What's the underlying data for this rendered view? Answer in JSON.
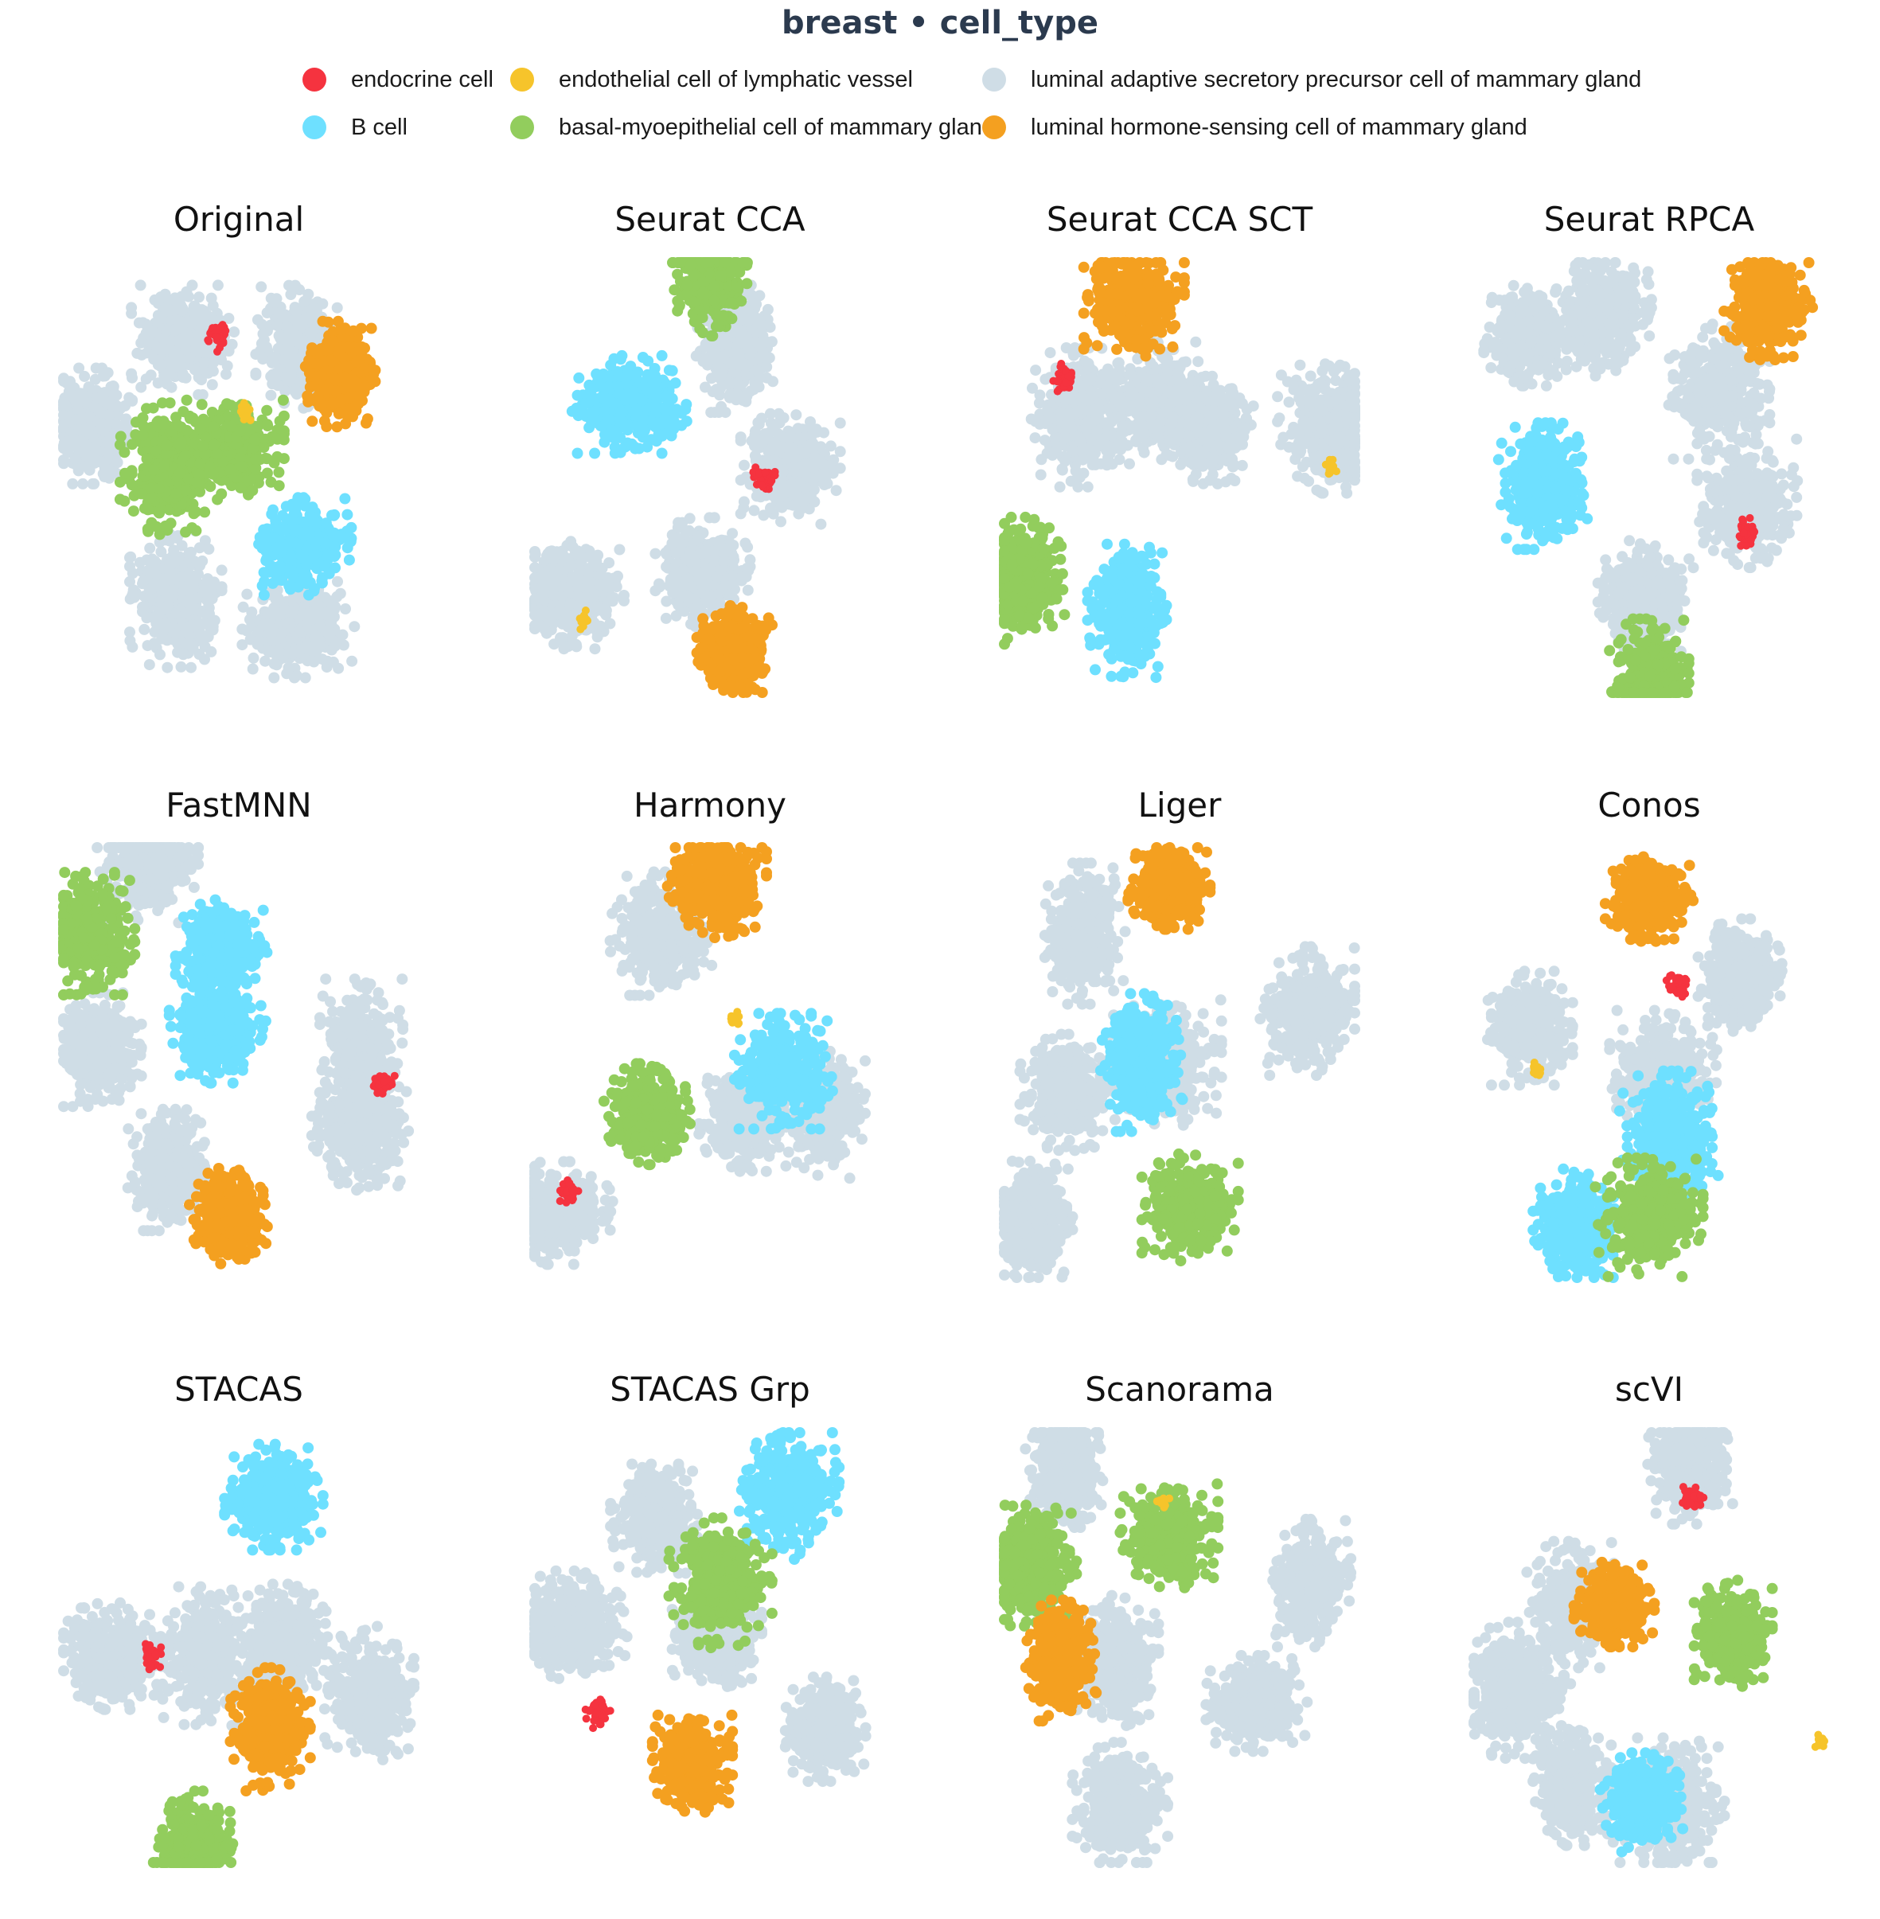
{
  "title": "breast • cell_type",
  "legend": [
    {
      "label": "endocrine cell",
      "color": "#f5333f"
    },
    {
      "label": "endothelial cell of lymphatic vessel",
      "color": "#f6c42b"
    },
    {
      "label": "luminal adaptive secretory precursor cell of mammary gland",
      "color": "#cfdde6"
    },
    {
      "label": "B cell",
      "color": "#6ee0ff"
    },
    {
      "label": "basal-myoepithelial cell of mammary gland",
      "color": "#92cd5d"
    },
    {
      "label": "luminal hormone-sensing cell of mammary gland",
      "color": "#f4a020"
    }
  ],
  "chart_data": {
    "type": "scatter",
    "description_of_marks": "UMAP embeddings; each panel shows clusters of cells coloured by cell type",
    "colors": {
      "endocrine cell": "#f5333f",
      "endothelial cell of lymphatic vessel": "#f6c42b",
      "luminal adaptive secretory precursor cell of mammary gland": "#cfdde6",
      "B cell": "#6ee0ff",
      "basal-myoepithelial cell of mammary gland": "#92cd5d",
      "luminal hormone-sensing cell of mammary gland": "#f4a020"
    },
    "panels": [
      {
        "title": "Original",
        "clusters": [
          {
            "type": "luminal adaptive secretory precursor cell of mammary gland",
            "x": 0.34,
            "y": 0.18
          },
          {
            "type": "luminal adaptive secretory precursor cell of mammary gland",
            "x": 0.67,
            "y": 0.2
          },
          {
            "type": "luminal hormone-sensing cell of mammary gland",
            "x": 0.79,
            "y": 0.26
          },
          {
            "type": "basal-myoepithelial cell of mammary gland",
            "x": 0.3,
            "y": 0.48
          },
          {
            "type": "basal-myoepithelial cell of mammary gland",
            "x": 0.48,
            "y": 0.43
          },
          {
            "type": "luminal adaptive secretory precursor cell of mammary gland",
            "x": 0.08,
            "y": 0.38
          },
          {
            "type": "luminal adaptive secretory precursor cell of mammary gland",
            "x": 0.32,
            "y": 0.78
          },
          {
            "type": "luminal adaptive secretory precursor cell of mammary gland",
            "x": 0.67,
            "y": 0.85
          },
          {
            "type": "B cell",
            "x": 0.68,
            "y": 0.66
          },
          {
            "type": "endocrine cell",
            "x": 0.44,
            "y": 0.17
          },
          {
            "type": "endothelial cell of lymphatic vessel",
            "x": 0.52,
            "y": 0.35
          }
        ]
      },
      {
        "title": "Seurat CCA",
        "clusters": [
          {
            "type": "B cell",
            "x": 0.27,
            "y": 0.33
          },
          {
            "type": "luminal adaptive secretory precursor cell of mammary gland",
            "x": 0.57,
            "y": 0.2
          },
          {
            "type": "luminal adaptive secretory precursor cell of mammary gland",
            "x": 0.73,
            "y": 0.48
          },
          {
            "type": "endocrine cell",
            "x": 0.65,
            "y": 0.5
          },
          {
            "type": "luminal adaptive secretory precursor cell of mammary gland",
            "x": 0.1,
            "y": 0.77
          },
          {
            "type": "luminal adaptive secretory precursor cell of mammary gland",
            "x": 0.48,
            "y": 0.72
          },
          {
            "type": "luminal hormone-sensing cell of mammary gland",
            "x": 0.57,
            "y": 0.9
          },
          {
            "type": "basal-myoepithelial cell of mammary gland",
            "x": 0.5,
            "y": 0.02
          },
          {
            "type": "endothelial cell of lymphatic vessel",
            "x": 0.14,
            "y": 0.83
          }
        ]
      },
      {
        "title": "Seurat CCA SCT",
        "clusters": [
          {
            "type": "luminal hormone-sensing cell of mammary gland",
            "x": 0.37,
            "y": 0.09
          },
          {
            "type": "luminal adaptive secretory precursor cell of mammary gland",
            "x": 0.22,
            "y": 0.36
          },
          {
            "type": "luminal adaptive secretory precursor cell of mammary gland",
            "x": 0.43,
            "y": 0.32
          },
          {
            "type": "endocrine cell",
            "x": 0.17,
            "y": 0.27
          },
          {
            "type": "luminal adaptive secretory precursor cell of mammary gland",
            "x": 0.59,
            "y": 0.39
          },
          {
            "type": "luminal adaptive secretory precursor cell of mammary gland",
            "x": 0.93,
            "y": 0.38
          },
          {
            "type": "B cell",
            "x": 0.35,
            "y": 0.81
          },
          {
            "type": "basal-myoepithelial cell of mammary gland",
            "x": 0.05,
            "y": 0.74
          },
          {
            "type": "endothelial cell of lymphatic vessel",
            "x": 0.93,
            "y": 0.47
          }
        ]
      },
      {
        "title": "Seurat RPCA",
        "clusters": [
          {
            "type": "luminal adaptive secretory precursor cell of mammary gland",
            "x": 0.15,
            "y": 0.17
          },
          {
            "type": "luminal adaptive secretory precursor cell of mammary gland",
            "x": 0.37,
            "y": 0.12
          },
          {
            "type": "luminal hormone-sensing cell of mammary gland",
            "x": 0.84,
            "y": 0.1
          },
          {
            "type": "luminal adaptive secretory precursor cell of mammary gland",
            "x": 0.7,
            "y": 0.3
          },
          {
            "type": "B cell",
            "x": 0.2,
            "y": 0.52
          },
          {
            "type": "luminal adaptive secretory precursor cell of mammary gland",
            "x": 0.78,
            "y": 0.56
          },
          {
            "type": "endocrine cell",
            "x": 0.78,
            "y": 0.63
          },
          {
            "type": "luminal adaptive secretory precursor cell of mammary gland",
            "x": 0.49,
            "y": 0.78
          },
          {
            "type": "basal-myoepithelial cell of mammary gland",
            "x": 0.5,
            "y": 0.98
          }
        ]
      },
      {
        "title": "FastMNN",
        "clusters": [
          {
            "type": "B cell",
            "x": 0.45,
            "y": 0.24
          },
          {
            "type": "B cell",
            "x": 0.44,
            "y": 0.43
          },
          {
            "type": "luminal adaptive secretory precursor cell of mammary gland",
            "x": 0.1,
            "y": 0.47
          },
          {
            "type": "luminal adaptive secretory precursor cell of mammary gland",
            "x": 0.85,
            "y": 0.47
          },
          {
            "type": "endocrine cell",
            "x": 0.91,
            "y": 0.55
          },
          {
            "type": "luminal adaptive secretory precursor cell of mammary gland",
            "x": 0.85,
            "y": 0.66
          },
          {
            "type": "luminal adaptive secretory precursor cell of mammary gland",
            "x": 0.3,
            "y": 0.75
          },
          {
            "type": "luminal hormone-sensing cell of mammary gland",
            "x": 0.47,
            "y": 0.86
          },
          {
            "type": "luminal adaptive secretory precursor cell of mammary gland",
            "x": 0.24,
            "y": 0.04
          },
          {
            "type": "basal-myoepithelial cell of mammary gland",
            "x": 0.07,
            "y": 0.2
          }
        ]
      },
      {
        "title": "Harmony",
        "clusters": [
          {
            "type": "luminal hormone-sensing cell of mammary gland",
            "x": 0.52,
            "y": 0.08
          },
          {
            "type": "luminal adaptive secretory precursor cell of mammary gland",
            "x": 0.36,
            "y": 0.2
          },
          {
            "type": "basal-myoepithelial cell of mammary gland",
            "x": 0.32,
            "y": 0.62
          },
          {
            "type": "luminal adaptive secretory precursor cell of mammary gland",
            "x": 0.83,
            "y": 0.62
          },
          {
            "type": "luminal adaptive secretory precursor cell of mammary gland",
            "x": 0.6,
            "y": 0.63
          },
          {
            "type": "luminal adaptive secretory precursor cell of mammary gland",
            "x": 0.06,
            "y": 0.85
          },
          {
            "type": "endocrine cell",
            "x": 0.1,
            "y": 0.8
          },
          {
            "type": "endothelial cell of lymphatic vessel",
            "x": 0.57,
            "y": 0.4
          },
          {
            "type": "B cell",
            "x": 0.71,
            "y": 0.52
          }
        ]
      },
      {
        "title": "Liger",
        "clusters": [
          {
            "type": "luminal hormone-sensing cell of mammary gland",
            "x": 0.47,
            "y": 0.09
          },
          {
            "type": "luminal adaptive secretory precursor cell of mammary gland",
            "x": 0.23,
            "y": 0.2
          },
          {
            "type": "luminal adaptive secretory precursor cell of mammary gland",
            "x": 0.87,
            "y": 0.38
          },
          {
            "type": "luminal adaptive secretory precursor cell of mammary gland",
            "x": 0.18,
            "y": 0.57
          },
          {
            "type": "luminal adaptive secretory precursor cell of mammary gland",
            "x": 0.46,
            "y": 0.5
          },
          {
            "type": "B cell",
            "x": 0.39,
            "y": 0.5
          },
          {
            "type": "basal-myoepithelial cell of mammary gland",
            "x": 0.53,
            "y": 0.84
          },
          {
            "type": "luminal adaptive secretory precursor cell of mammary gland",
            "x": 0.08,
            "y": 0.87
          }
        ]
      },
      {
        "title": "Conos",
        "clusters": [
          {
            "type": "luminal hormone-sensing cell of mammary gland",
            "x": 0.5,
            "y": 0.12
          },
          {
            "type": "luminal adaptive secretory precursor cell of mammary gland",
            "x": 0.76,
            "y": 0.3
          },
          {
            "type": "luminal adaptive secretory precursor cell of mammary gland",
            "x": 0.16,
            "y": 0.42
          },
          {
            "type": "endocrine cell",
            "x": 0.58,
            "y": 0.32
          },
          {
            "type": "luminal adaptive secretory precursor cell of mammary gland",
            "x": 0.54,
            "y": 0.52
          },
          {
            "type": "B cell",
            "x": 0.3,
            "y": 0.88
          },
          {
            "type": "B cell",
            "x": 0.56,
            "y": 0.68
          },
          {
            "type": "endothelial cell of lymphatic vessel",
            "x": 0.18,
            "y": 0.52
          },
          {
            "type": "basal-myoepithelial cell of mammary gland",
            "x": 0.5,
            "y": 0.86
          }
        ]
      },
      {
        "title": "STACAS",
        "clusters": [
          {
            "type": "B cell",
            "x": 0.6,
            "y": 0.15
          },
          {
            "type": "luminal adaptive secretory precursor cell of mammary gland",
            "x": 0.14,
            "y": 0.52
          },
          {
            "type": "luminal adaptive secretory precursor cell of mammary gland",
            "x": 0.4,
            "y": 0.52
          },
          {
            "type": "endocrine cell",
            "x": 0.25,
            "y": 0.52
          },
          {
            "type": "luminal adaptive secretory precursor cell of mammary gland",
            "x": 0.63,
            "y": 0.49
          },
          {
            "type": "luminal hormone-sensing cell of mammary gland",
            "x": 0.59,
            "y": 0.69
          },
          {
            "type": "luminal adaptive secretory precursor cell of mammary gland",
            "x": 0.88,
            "y": 0.61
          },
          {
            "type": "basal-myoepithelial cell of mammary gland",
            "x": 0.37,
            "y": 0.97
          }
        ]
      },
      {
        "title": "STACAS Grp",
        "clusters": [
          {
            "type": "B cell",
            "x": 0.72,
            "y": 0.14
          },
          {
            "type": "luminal adaptive secretory precursor cell of mammary gland",
            "x": 0.34,
            "y": 0.2
          },
          {
            "type": "luminal adaptive secretory precursor cell of mammary gland",
            "x": 0.1,
            "y": 0.45
          },
          {
            "type": "endocrine cell",
            "x": 0.18,
            "y": 0.65
          },
          {
            "type": "luminal adaptive secretory precursor cell of mammary gland",
            "x": 0.52,
            "y": 0.48
          },
          {
            "type": "luminal hormone-sensing cell of mammary gland",
            "x": 0.45,
            "y": 0.77
          },
          {
            "type": "luminal adaptive secretory precursor cell of mammary gland",
            "x": 0.83,
            "y": 0.69
          },
          {
            "type": "basal-myoepithelial cell of mammary gland",
            "x": 0.53,
            "y": 0.35
          }
        ]
      },
      {
        "title": "Scanorama",
        "clusters": [
          {
            "type": "luminal adaptive secretory precursor cell of mammary gland",
            "x": 0.17,
            "y": 0.08
          },
          {
            "type": "basal-myoepithelial cell of mammary gland",
            "x": 0.47,
            "y": 0.24
          },
          {
            "type": "basal-myoepithelial cell of mammary gland",
            "x": 0.07,
            "y": 0.31
          },
          {
            "type": "luminal hormone-sensing cell of mammary gland",
            "x": 0.16,
            "y": 0.53
          },
          {
            "type": "luminal adaptive secretory precursor cell of mammary gland",
            "x": 0.32,
            "y": 0.53
          },
          {
            "type": "luminal adaptive secretory precursor cell of mammary gland",
            "x": 0.72,
            "y": 0.63
          },
          {
            "type": "luminal adaptive secretory precursor cell of mammary gland",
            "x": 0.87,
            "y": 0.35
          },
          {
            "type": "luminal adaptive secretory precursor cell of mammary gland",
            "x": 0.33,
            "y": 0.87
          },
          {
            "type": "endothelial cell of lymphatic vessel",
            "x": 0.45,
            "y": 0.16
          }
        ]
      },
      {
        "title": "scVI",
        "clusters": [
          {
            "type": "luminal adaptive secretory precursor cell of mammary gland",
            "x": 0.62,
            "y": 0.07
          },
          {
            "type": "endocrine cell",
            "x": 0.62,
            "y": 0.15
          },
          {
            "type": "luminal hormone-sensing cell of mammary gland",
            "x": 0.4,
            "y": 0.4
          },
          {
            "type": "luminal adaptive secretory precursor cell of mammary gland",
            "x": 0.28,
            "y": 0.4
          },
          {
            "type": "basal-myoepithelial cell of mammary gland",
            "x": 0.74,
            "y": 0.47
          },
          {
            "type": "luminal adaptive secretory precursor cell of mammary gland",
            "x": 0.12,
            "y": 0.6
          },
          {
            "type": "luminal adaptive secretory precursor cell of mammary gland",
            "x": 0.28,
            "y": 0.82
          },
          {
            "type": "luminal adaptive secretory precursor cell of mammary gland",
            "x": 0.55,
            "y": 0.87
          },
          {
            "type": "B cell",
            "x": 0.48,
            "y": 0.86
          },
          {
            "type": "endothelial cell of lymphatic vessel",
            "x": 0.99,
            "y": 0.72
          }
        ]
      }
    ]
  }
}
